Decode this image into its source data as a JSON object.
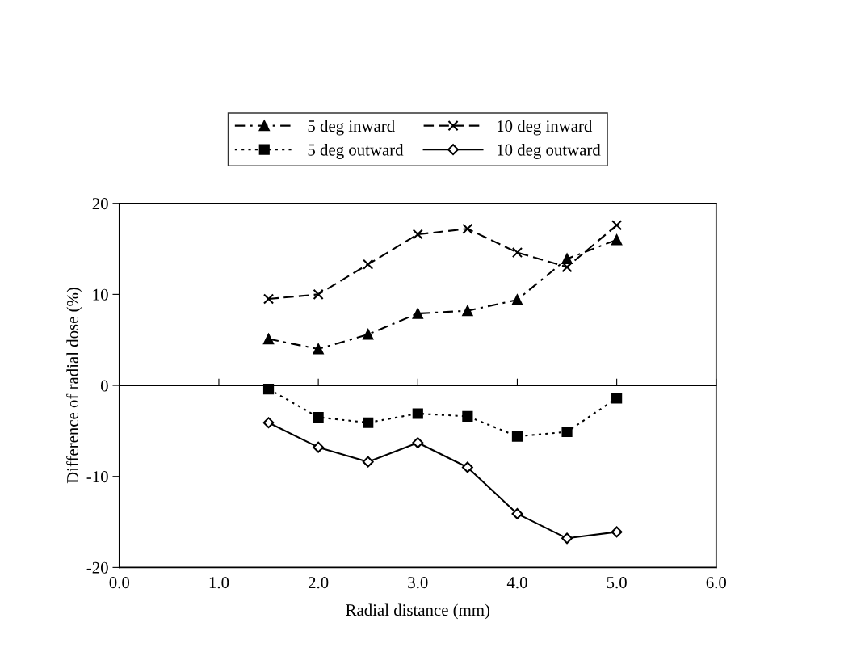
{
  "chart_data": {
    "type": "line",
    "xlabel": "Radial distance (mm)",
    "ylabel": "Difference of radial dose (%)",
    "x": [
      1.5,
      2.0,
      2.5,
      3.0,
      3.5,
      4.0,
      4.5,
      5.0
    ],
    "series": [
      {
        "name": "5 deg inward",
        "color": "#000000",
        "marker": "triangle",
        "line_style": "dashdot",
        "values": [
          5.1,
          4.0,
          5.6,
          7.9,
          8.2,
          9.4,
          13.9,
          16.0
        ]
      },
      {
        "name": "5 deg outward",
        "color": "#000000",
        "marker": "square",
        "line_style": "dotted",
        "values": [
          -0.4,
          -3.5,
          -4.1,
          -3.1,
          -3.4,
          -5.6,
          -5.1,
          -1.4
        ]
      },
      {
        "name": "10 deg inward",
        "color": "#000000",
        "marker": "cross",
        "line_style": "dashed",
        "values": [
          9.5,
          10.0,
          13.3,
          16.6,
          17.2,
          14.6,
          13.0,
          17.6
        ]
      },
      {
        "name": "10 deg outward",
        "color": "#000000",
        "marker": "diamond",
        "line_style": "solid",
        "values": [
          -4.1,
          -6.8,
          -8.4,
          -6.3,
          -9.0,
          -14.1,
          -16.8,
          -16.1
        ]
      }
    ],
    "xlim": [
      0,
      6
    ],
    "ylim": [
      -20,
      20
    ],
    "xticks": [
      {
        "value": 0,
        "label": "0.0"
      },
      {
        "value": 1,
        "label": "1.0"
      },
      {
        "value": 2,
        "label": "2.0"
      },
      {
        "value": 3,
        "label": "3.0"
      },
      {
        "value": 4,
        "label": "4.0"
      },
      {
        "value": 5,
        "label": "5.0"
      },
      {
        "value": 6,
        "label": "6.0"
      }
    ],
    "yticks": [
      -20,
      -10,
      0,
      10,
      20
    ],
    "legend": "top"
  }
}
